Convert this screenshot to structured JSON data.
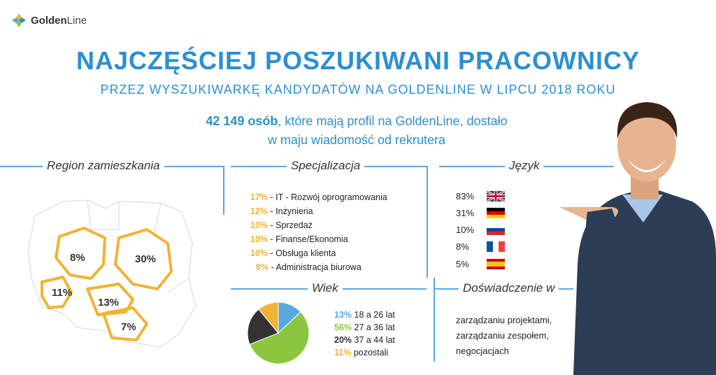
{
  "logo": {
    "part1": "Golden",
    "part2": "Line"
  },
  "title": "NAJCZĘŚCIEJ POSZUKIWANI PRACOWNICY",
  "subtitle": "PRZEZ WYSZUKIWARKĘ KANDYDATÓW NA GOLDENLINE W LIPCU 2018 ROKU",
  "lead": {
    "bold": "42 149 osób",
    "line1_rest": ", które mają profil na GoldenLine, dostało",
    "line2": "w maju wiadomość od rekrutera"
  },
  "sections": {
    "region": "Region zamieszkania",
    "spec": "Specjalizacja",
    "lang": "Język",
    "age": "Wiek",
    "exp": "Doświadczenie w"
  },
  "colors": {
    "accent": "#2b8fd1",
    "orange": "#f2b233",
    "green": "#8cc63f",
    "dark": "#333333",
    "blue": "#5aa9de"
  },
  "chart_data": [
    {
      "type": "table",
      "title": "Region zamieszkania",
      "categories": [
        "8%",
        "30%",
        "11%",
        "13%",
        "7%"
      ],
      "values": [
        8,
        30,
        11,
        13,
        7
      ]
    },
    {
      "type": "table",
      "title": "Specjalizacja",
      "rows": [
        {
          "pct": "17%",
          "label": " - IT - Rozwój oprogramowania",
          "value": 17
        },
        {
          "pct": "12%",
          "label": " - Inżynieria",
          "value": 12
        },
        {
          "pct": "10%",
          "label": " - Sprzedaż",
          "value": 10
        },
        {
          "pct": "10%",
          "label": " - Finanse/Ekonomia",
          "value": 10
        },
        {
          "pct": "10%",
          "label": " - Obsługa klienta",
          "value": 10
        },
        {
          "pct": "8%",
          "label": " - Administracja biurowa",
          "value": 8
        }
      ]
    },
    {
      "type": "table",
      "title": "Język",
      "rows": [
        {
          "pct": "83%",
          "flag": "uk-flag-icon",
          "value": 83
        },
        {
          "pct": "31%",
          "flag": "germany-flag-icon",
          "value": 31
        },
        {
          "pct": "10%",
          "flag": "russia-flag-icon",
          "value": 10
        },
        {
          "pct": "8%",
          "flag": "france-flag-icon",
          "value": 8
        },
        {
          "pct": "5%",
          "flag": "spain-flag-icon",
          "value": 5
        }
      ]
    },
    {
      "type": "pie",
      "title": "Wiek",
      "series": [
        {
          "pct": "13%",
          "label": " 18 a 26 lat",
          "value": 13,
          "color": "#5aa9de"
        },
        {
          "pct": "56%",
          "label": " 27 a 36 lat",
          "value": 56,
          "color": "#8cc63f"
        },
        {
          "pct": "20%",
          "label": " 37 a 44 lat",
          "value": 20,
          "color": "#333333"
        },
        {
          "pct": "11%",
          "label": " pozostali",
          "value": 11,
          "color": "#f2b233"
        }
      ]
    }
  ],
  "experience": [
    "zarządzaniu projektami,",
    "zarządzaniu zespołem,",
    "negocjacjach"
  ]
}
